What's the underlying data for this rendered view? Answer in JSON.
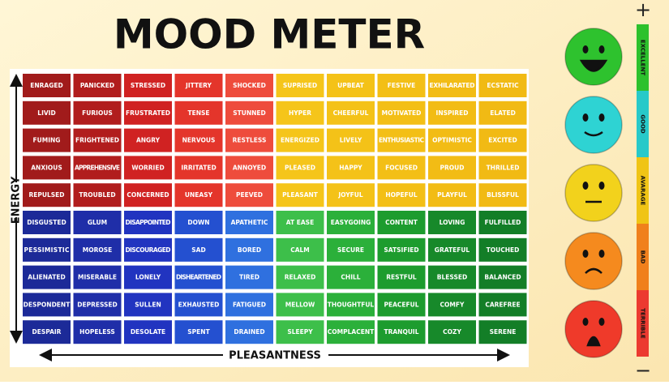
{
  "title": "MOOD METER",
  "axes": {
    "vertical": "ENERGY",
    "horizontal": "PLEASANTNESS"
  },
  "grid": {
    "rows": [
      [
        "ENRAGED",
        "PANICKED",
        "STRESSED",
        "JITTERY",
        "SHOCKED",
        "SUPRISED",
        "UPBEAT",
        "FESTIVE",
        "EXHILARATED",
        "ECSTATIC"
      ],
      [
        "LIVID",
        "FURIOUS",
        "FRUSTRATED",
        "TENSE",
        "STUNNED",
        "HYPER",
        "CHEERFUL",
        "MOTIVATED",
        "INSPIRED",
        "ELATED"
      ],
      [
        "FUMING",
        "FRIGHTENED",
        "ANGRY",
        "NERVOUS",
        "RESTLESS",
        "ENERGIZED",
        "LIVELY",
        "ENTHUSIASTIC",
        "OPTIMISTIC",
        "EXCITED"
      ],
      [
        "ANXIOUS",
        "APPREHENSIVE",
        "WORRIED",
        "IRRITATED",
        "ANNOYED",
        "PLEASED",
        "HAPPY",
        "FOCUSED",
        "PROUD",
        "THRILLED"
      ],
      [
        "REPULSED",
        "TROUBLED",
        "CONCERNED",
        "UNEASY",
        "PEEVED",
        "PLEASANT",
        "JOYFUL",
        "HOPEFUL",
        "PLAYFUL",
        "BLISSFUL"
      ],
      [
        "DISGUSTED",
        "GLUM",
        "DISAPPOINTED",
        "DOWN",
        "APATHETIC",
        "AT EASE",
        "EASYGOING",
        "CONTENT",
        "LOVING",
        "FULFILLED"
      ],
      [
        "PESSIMISTIC",
        "MOROSE",
        "DISCOURAGED",
        "SAD",
        "BORED",
        "CALM",
        "SECURE",
        "SATSIFIED",
        "GRATEFUL",
        "TOUCHED"
      ],
      [
        "ALIENATED",
        "MISERABLE",
        "LONELY",
        "DISHEARTENED",
        "TIRED",
        "RELAXED",
        "CHILL",
        "RESTFUL",
        "BLESSED",
        "BALANCED"
      ],
      [
        "DESPONDENT",
        "DEPRESSED",
        "SULLEN",
        "EXHAUSTED",
        "FATIGUED",
        "MELLOW",
        "THOUGHTFUL",
        "PEACEFUL",
        "COMFY",
        "CAREFREE"
      ],
      [
        "DESPAIR",
        "HOPELESS",
        "DESOLATE",
        "SPENT",
        "DRAINED",
        "SLEEPY",
        "COMPLACENT",
        "TRANQUIL",
        "COZY",
        "SERENE"
      ]
    ]
  },
  "scale": {
    "top": "+",
    "bottom": "−",
    "levels": [
      "EXCELLENT",
      "GOOD",
      "AVARAGE",
      "BAD",
      "TERRIBLE"
    ]
  }
}
